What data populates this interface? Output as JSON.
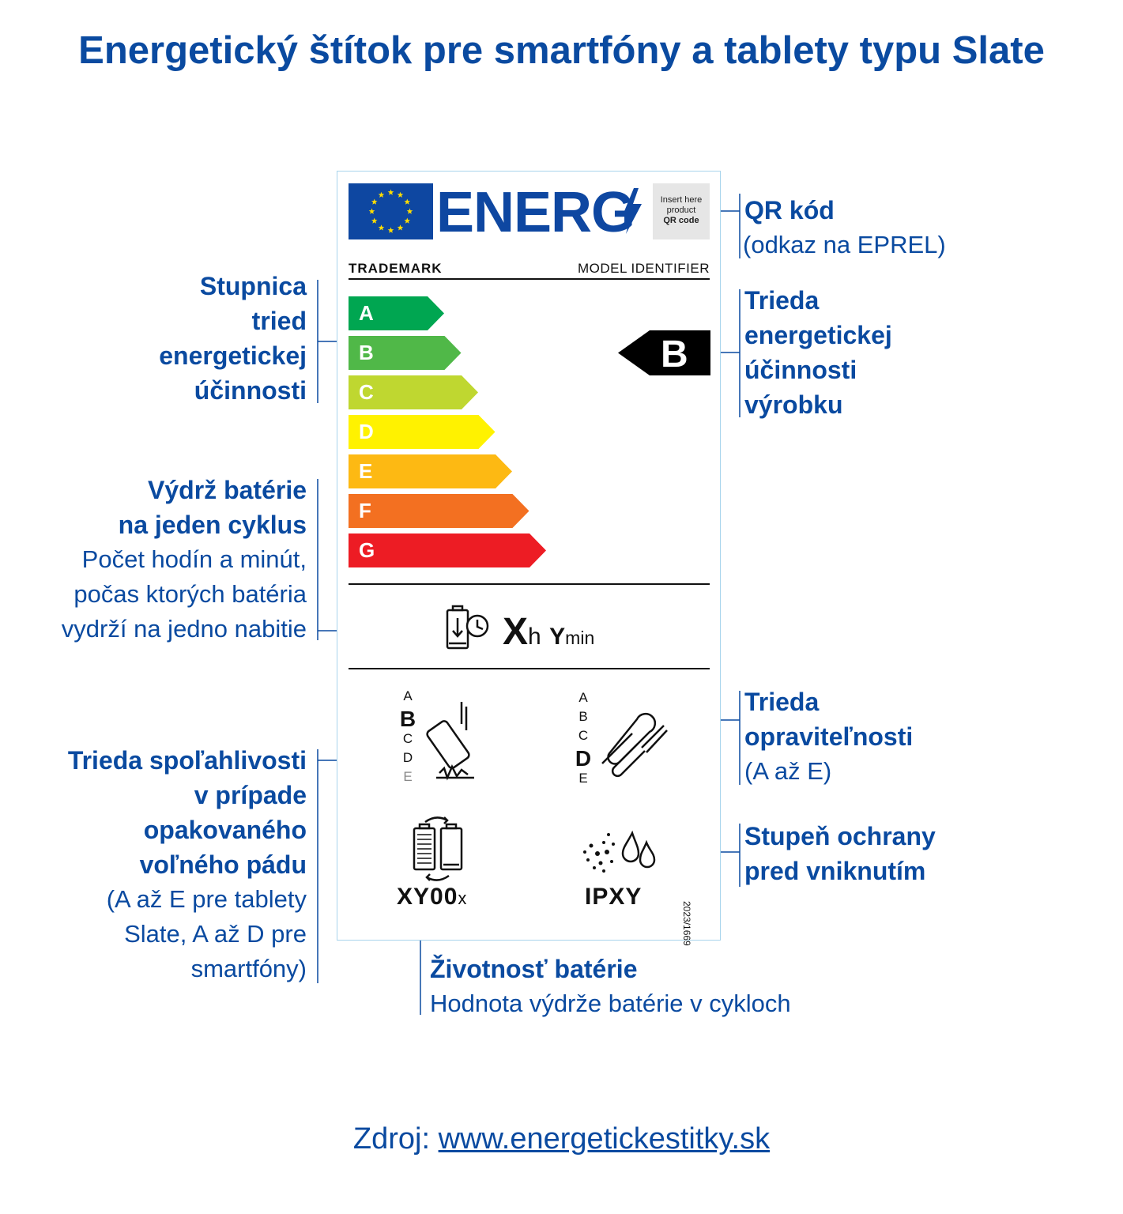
{
  "title": "Energetický štítok pre smartfóny a tablety typu Slate",
  "label": {
    "energy_word": "ENERG",
    "qr_placeholder": [
      "Insert here",
      "product",
      "QR code"
    ],
    "trademark": "TRADEMARK",
    "model": "MODEL IDENTIFIER",
    "scale": [
      {
        "letter": "A",
        "color": "#00a651"
      },
      {
        "letter": "B",
        "color": "#50b848"
      },
      {
        "letter": "C",
        "color": "#bfd730"
      },
      {
        "letter": "D",
        "color": "#fff200"
      },
      {
        "letter": "E",
        "color": "#fdb913"
      },
      {
        "letter": "F",
        "color": "#f37021"
      },
      {
        "letter": "G",
        "color": "#ed1c24"
      }
    ],
    "product_class": "B",
    "battery_x": "X",
    "battery_h": "h",
    "battery_y": "Y",
    "battery_min": "min",
    "reliability_classes": [
      "A",
      "B",
      "C",
      "D",
      "E"
    ],
    "reliability_selected": "B",
    "repair_classes": [
      "A",
      "B",
      "C",
      "D",
      "E"
    ],
    "repair_selected": "D",
    "cycles_value": "XY00",
    "cycles_suffix": "x",
    "ip_value": "IPXY",
    "regulation": "2023/1669"
  },
  "annotations": {
    "qr_title": "QR kód",
    "qr_sub": "(odkaz na EPREL)",
    "scale_lines": [
      "Stupnica",
      "tried",
      "energetickej",
      "účinnosti"
    ],
    "class_lines": [
      "Trieda",
      "energetickej",
      "účinnosti",
      "výrobku"
    ],
    "endurance_title": [
      "Výdrž batérie",
      "na jeden cyklus"
    ],
    "endurance_sub": [
      "Počet hodín a minút,",
      "počas ktorých batéria",
      "vydrží na jedno nabitie"
    ],
    "repair_title": [
      "Trieda",
      "opraviteľnosti"
    ],
    "repair_sub": "(A až E)",
    "reliability_title": [
      "Trieda spoľahlivosti",
      "v prípade",
      "opakovaného",
      "voľného pádu"
    ],
    "reliability_sub": [
      "(A až E pre tablety",
      "Slate, A až D pre",
      "smartfóny)"
    ],
    "ip_title": [
      "Stupeň ochrany",
      "pred vniknutím"
    ],
    "life_title": "Životnosť batérie",
    "life_sub": "Hodnota výdrže batérie v cykloch"
  },
  "source_prefix": "Zdroj: ",
  "source_link": "www.energetickestitky.sk",
  "colors": {
    "brand_blue": "#0a4aa0",
    "eu_blue": "#0e47a1",
    "eu_star": "#ffdd00",
    "label_border": "#a8d4ec"
  }
}
